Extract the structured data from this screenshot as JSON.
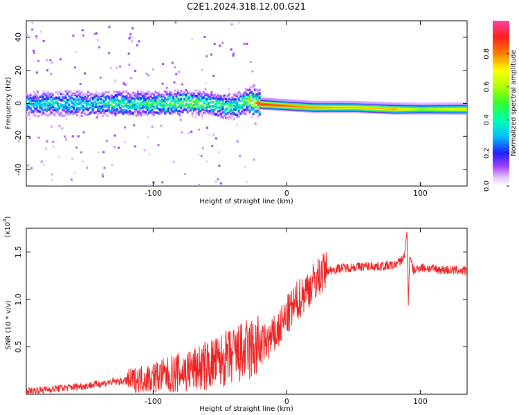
{
  "page_title": "C2E1.2024.318.12.00.G21",
  "chart_data": [
    {
      "type": "heatmap",
      "title": "C2E1.2024.318.12.00.G21",
      "xlabel": "Height of straight line (km)",
      "ylabel": "Frequency (Hz)",
      "xlim": [
        -195,
        135
      ],
      "ylim": [
        -50,
        50
      ],
      "xticks": [
        -100,
        0,
        100
      ],
      "yticks": [
        -40,
        -20,
        0,
        20,
        40
      ],
      "xtick_labels": [
        "-100",
        "0",
        "100"
      ],
      "ytick_labels": [
        "-40",
        "-20",
        "0",
        "20",
        "40"
      ],
      "colorbar": {
        "label": "Normalized spectral amplitude",
        "range": [
          0,
          1
        ],
        "ticks": [
          0.0,
          0.2,
          0.4,
          0.6,
          0.8
        ],
        "tick_labels": [
          "0.0",
          "0.2",
          "0.4",
          "0.6",
          "0.8"
        ]
      },
      "ridge": {
        "description_free": true,
        "x": [
          -195,
          -170,
          -150,
          -130,
          -110,
          -90,
          -75,
          -60,
          -50,
          -40,
          -30,
          -20,
          0,
          20,
          50,
          80,
          100,
          135
        ],
        "center_hz": [
          0,
          0,
          0,
          0,
          0,
          0,
          1,
          0,
          -1,
          -2,
          2,
          0,
          -1,
          -2,
          -2,
          -3,
          -3,
          -3
        ],
        "peak_amplitude": [
          0.35,
          0.4,
          0.4,
          0.45,
          0.45,
          0.5,
          0.55,
          0.5,
          0.45,
          0.45,
          0.55,
          0.9,
          0.85,
          0.8,
          0.75,
          0.8,
          0.6,
          0.75
        ]
      }
    },
    {
      "type": "line",
      "xlabel": "Height of straight line (km)",
      "ylabel": "SNR (10 * v/v)",
      "scale_label": "(x10",
      "scale_exponent": "4",
      "scale_suffix": ")",
      "xlim": [
        -195,
        135
      ],
      "ylim": [
        0,
        1.75
      ],
      "xticks": [
        -100,
        0,
        100
      ],
      "yticks": [
        0.5,
        1.0,
        1.5
      ],
      "xtick_labels": [
        "-100",
        "0",
        "100"
      ],
      "ytick_labels": [
        "0.5",
        "1.0",
        "1.5"
      ],
      "color": "#ee2222",
      "series": [
        {
          "name": "SNR",
          "x": [
            -195,
            -180,
            -165,
            -150,
            -140,
            -130,
            -120,
            -110,
            -100,
            -90,
            -80,
            -70,
            -60,
            -50,
            -40,
            -30,
            -20,
            -15,
            -10,
            -5,
            0,
            5,
            10,
            15,
            20,
            25,
            30,
            40,
            50,
            60,
            70,
            80,
            85,
            88,
            90,
            91,
            92,
            95,
            100,
            110,
            120,
            135
          ],
          "y": [
            0.03,
            0.05,
            0.07,
            0.09,
            0.11,
            0.13,
            0.14,
            0.16,
            0.18,
            0.2,
            0.23,
            0.26,
            0.3,
            0.35,
            0.4,
            0.45,
            0.5,
            0.55,
            0.6,
            0.7,
            0.82,
            0.92,
            1.02,
            1.1,
            1.18,
            1.25,
            1.3,
            1.33,
            1.34,
            1.35,
            1.35,
            1.36,
            1.4,
            1.45,
            1.72,
            0.95,
            1.45,
            1.3,
            1.34,
            1.32,
            1.31,
            1.3
          ]
        }
      ]
    }
  ]
}
